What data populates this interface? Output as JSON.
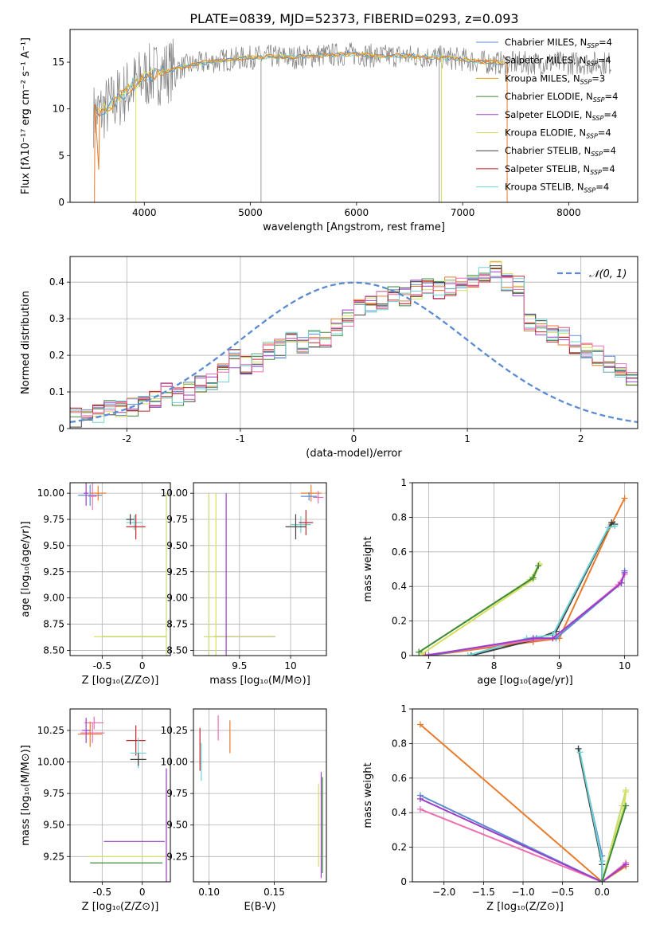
{
  "figure": {
    "title": "PLATE=0839, MJD=52373, FIBERID=0293, z=0.093"
  },
  "palette": {
    "Chabrier MILES": "#5b8bd0",
    "Salpeter MILES": "#e87b2c",
    "Kroupa MILES": "#e8a31d",
    "Chabrier ELODIE": "#3d8a3d",
    "Salpeter ELODIE": "#9b3ec9",
    "Kroupa ELODIE": "#d7e05a",
    "Chabrier STELIB": "#404040",
    "Salpeter STELIB": "#c0272d",
    "Kroupa STELIB": "#6fd3d6",
    "pink": "#ee6fb0",
    "lime": "#c4dc70",
    "data_gray": "#808080",
    "normal_curve": "#5b8bd0"
  },
  "chart_data": [
    {
      "id": "spectrum",
      "type": "line",
      "xlabel": "wavelength [Angstrom, rest frame]",
      "ylabel": "Flux [fλ10⁻¹⁷ erg cm⁻² s⁻¹ A⁻¹]",
      "xlim": [
        3300,
        8650
      ],
      "ylim": [
        0,
        18.5
      ],
      "xticks": [
        4000,
        5000,
        6000,
        7000,
        8000
      ],
      "yticks": [
        0,
        5,
        10,
        15
      ],
      "legend_position": "top-right",
      "legend": [
        {
          "label": "Chabrier MILES, N",
          "sub": "SSP",
          "tail": "=4",
          "color": "#5b8bd0"
        },
        {
          "label": "Salpeter MILES, N",
          "sub": "SSP",
          "tail": "=4",
          "color": "#e87b2c"
        },
        {
          "label": "Kroupa MILES, N",
          "sub": "SSP",
          "tail": "=3",
          "color": "#e8a31d"
        },
        {
          "label": "Chabrier ELODIE, N",
          "sub": "SSP",
          "tail": "=4",
          "color": "#3d8a3d"
        },
        {
          "label": "Salpeter ELODIE, N",
          "sub": "SSP",
          "tail": "=4",
          "color": "#9b3ec9"
        },
        {
          "label": "Kroupa ELODIE, N",
          "sub": "SSP",
          "tail": "=4",
          "color": "#d7e05a"
        },
        {
          "label": "Chabrier STELIB, N",
          "sub": "SSP",
          "tail": "=4",
          "color": "#404040"
        },
        {
          "label": "Salpeter STELIB, N",
          "sub": "SSP",
          "tail": "=4",
          "color": "#c0272d"
        },
        {
          "label": "Kroupa STELIB, N",
          "sub": "SSP",
          "tail": "=4",
          "color": "#6fd3d6"
        }
      ],
      "continuum": [
        [
          3500,
          9.2
        ],
        [
          3600,
          9.8
        ],
        [
          3700,
          10.6
        ],
        [
          3800,
          11.6
        ],
        [
          3900,
          12.6
        ],
        [
          4000,
          13.4
        ],
        [
          4200,
          14.0
        ],
        [
          4400,
          14.6
        ],
        [
          4600,
          15.0
        ],
        [
          4800,
          15.3
        ],
        [
          5000,
          15.5
        ],
        [
          5200,
          15.6
        ],
        [
          5400,
          15.5
        ],
        [
          5600,
          15.7
        ],
        [
          5800,
          15.8
        ],
        [
          6000,
          15.9
        ],
        [
          6200,
          15.6
        ],
        [
          6400,
          15.7
        ],
        [
          6600,
          15.6
        ],
        [
          6800,
          15.5
        ],
        [
          7000,
          15.3
        ],
        [
          7200,
          15.0
        ],
        [
          7400,
          14.9
        ]
      ],
      "model_edges": [
        {
          "color": "#e87b2c",
          "x": [
            3530,
            3570
          ],
          "drop_to": 0,
          "right_end": 7420
        },
        {
          "color": "#d7e05a",
          "x": [
            3920
          ],
          "drop_to": 0,
          "right_end": 6800
        }
      ],
      "data_range": [
        3520,
        8400
      ],
      "noise_amplitude_blue": 3.5,
      "noise_amplitude_red": 1.3,
      "spikes": [
        {
          "x": 5100,
          "y0": 0,
          "y1": 15.2
        },
        {
          "x": 6780,
          "y0": 0,
          "y1": 15.4
        }
      ]
    },
    {
      "id": "residuals",
      "type": "histogram",
      "xlabel": "(data-model)/error",
      "ylabel": "Normed distribution",
      "xlim": [
        -2.5,
        2.5
      ],
      "ylim": [
        0,
        0.47
      ],
      "xticks": [
        -2,
        -1,
        0,
        1,
        2
      ],
      "yticks": [
        0.0,
        0.1,
        0.2,
        0.3,
        0.4
      ],
      "grid": true,
      "legend_position": "top-right",
      "legend": [
        {
          "label": "𝒩(0, 1)",
          "color": "#5b8bd0",
          "style": "dashed"
        }
      ],
      "bin_width": 0.1,
      "bin_start": -2.5,
      "base_values": [
        0.03,
        0.03,
        0.04,
        0.05,
        0.05,
        0.06,
        0.07,
        0.08,
        0.1,
        0.09,
        0.1,
        0.12,
        0.13,
        0.15,
        0.19,
        0.17,
        0.18,
        0.21,
        0.22,
        0.24,
        0.23,
        0.25,
        0.24,
        0.28,
        0.3,
        0.33,
        0.34,
        0.35,
        0.37,
        0.36,
        0.38,
        0.39,
        0.38,
        0.39,
        0.4,
        0.41,
        0.42,
        0.43,
        0.4,
        0.39,
        0.29,
        0.28,
        0.26,
        0.25,
        0.23,
        0.21,
        0.2,
        0.18,
        0.15,
        0.14,
        0.13,
        0.11,
        0.1,
        0.09,
        0.08,
        0.07,
        0.07,
        0.06,
        0.05,
        0.05
      ],
      "normal_curve": {
        "mu": 0,
        "sigma": 1
      }
    },
    {
      "id": "age_vs_Z",
      "type": "scatter",
      "xlabel": "Z [log₁₀(Z/Z⊙)]",
      "ylabel": "age  [log₁₀(age/yr)]",
      "xlim": [
        -0.9,
        0.35
      ],
      "ylim": [
        8.45,
        10.1
      ],
      "xticks": [
        -0.5,
        0.0
      ],
      "yticks": [
        8.5,
        8.75,
        9.0,
        9.25,
        9.5,
        9.75,
        10.0
      ],
      "ytick_labels": [
        "8.50",
        "8.75",
        "9.00",
        "9.25",
        "9.50",
        "9.75",
        "10.00"
      ],
      "grid": true,
      "points": [
        {
          "x": -0.65,
          "y": 9.98,
          "xerr": 0.15,
          "yerr": 0.1,
          "color": "#5b8bd0"
        },
        {
          "x": -0.55,
          "y": 10.0,
          "xerr": 0.1,
          "yerr": 0.07,
          "color": "#e87b2c"
        },
        {
          "x": -0.62,
          "y": 9.97,
          "xerr": 0.05,
          "yerr": 0.13,
          "color": "#ee6fb0"
        },
        {
          "x": -0.7,
          "y": 10.0,
          "xerr": 0.03,
          "yerr": 0.12,
          "color": "#9b3ec9"
        },
        {
          "x": -0.1,
          "y": 9.72,
          "xerr": 0.1,
          "yerr": 0.07,
          "color": "#6fd3d6"
        },
        {
          "x": -0.08,
          "y": 9.68,
          "xerr": 0.12,
          "yerr": 0.12,
          "color": "#c0272d"
        },
        {
          "x": -0.15,
          "y": 9.75,
          "xerr": 0.05,
          "yerr": 0.05,
          "color": "#404040"
        },
        {
          "x": -0.1,
          "y": 8.63,
          "xerr": 0.4,
          "yerr": 0.0,
          "color": "#3d8a3d"
        },
        {
          "x": -0.15,
          "y": 8.63,
          "xerr": 0.45,
          "yerr": 0.0,
          "color": "#d7e05a"
        },
        {
          "x": 0.3,
          "y": 9.2,
          "xerr": 0.0,
          "yerr": 0.8,
          "color": "#c4dc70"
        }
      ]
    },
    {
      "id": "age_vs_mass",
      "type": "scatter",
      "xlabel": "mass [log₁₀(M/M⊙)]",
      "ylabel": "",
      "xlim": [
        9.05,
        10.35
      ],
      "ylim": [
        8.45,
        10.1
      ],
      "xticks": [
        9.5,
        10.0
      ],
      "yticks": [
        8.5,
        8.75,
        9.0,
        9.25,
        9.5,
        9.75,
        10.0
      ],
      "ytick_labels": [
        "8.50",
        "8.75",
        "9.00",
        "9.25",
        "9.50",
        "9.75",
        "10.00"
      ],
      "grid": true,
      "points": [
        {
          "x": 10.2,
          "y": 10.0,
          "xerr": 0.1,
          "yerr": 0.08,
          "color": "#e87b2c"
        },
        {
          "x": 10.27,
          "y": 9.96,
          "xerr": 0.05,
          "yerr": 0.06,
          "color": "#ee6fb0"
        },
        {
          "x": 10.18,
          "y": 9.97,
          "xerr": 0.08,
          "yerr": 0.04,
          "color": "#5b8bd0"
        },
        {
          "x": 10.1,
          "y": 9.7,
          "xerr": 0.1,
          "yerr": 0.08,
          "color": "#6fd3d6"
        },
        {
          "x": 10.05,
          "y": 9.68,
          "xerr": 0.1,
          "yerr": 0.12,
          "color": "#404040"
        },
        {
          "x": 10.15,
          "y": 9.72,
          "xerr": 0.07,
          "yerr": 0.12,
          "color": "#c0272d"
        },
        {
          "x": 9.55,
          "y": 8.63,
          "xerr": 0.3,
          "yerr": 0.0,
          "color": "#9b3ec9"
        },
        {
          "x": 9.5,
          "y": 8.63,
          "xerr": 0.35,
          "yerr": 0.0,
          "color": "#c4dc70"
        },
        {
          "x": 9.37,
          "y": 9.2,
          "xerr": 0.0,
          "yerr": 0.8,
          "color": "#9b3ec9"
        },
        {
          "x": 9.27,
          "y": 9.2,
          "xerr": 0.0,
          "yerr": 0.8,
          "color": "#d7e05a"
        },
        {
          "x": 9.2,
          "y": 9.2,
          "xerr": 0.0,
          "yerr": 0.8,
          "color": "#c4dc70"
        }
      ]
    },
    {
      "id": "mass_weight_vs_age",
      "type": "line",
      "xlabel": "age  [log₁₀(age/yr)]",
      "ylabel": "mass weight",
      "xlim": [
        6.75,
        10.2
      ],
      "ylim": [
        0,
        1.0
      ],
      "xticks": [
        7,
        8,
        9,
        10
      ],
      "yticks": [
        0.0,
        0.2,
        0.4,
        0.6,
        0.8,
        1.0
      ],
      "grid": true,
      "series": [
        {
          "color": "#e87b2c",
          "x": [
            7.0,
            8.6,
            9.0,
            9.8,
            10.0
          ],
          "y": [
            0.0,
            0.08,
            0.1,
            0.76,
            0.91
          ]
        },
        {
          "color": "#404040",
          "x": [
            7.65,
            8.6,
            8.95,
            9.8,
            9.85
          ],
          "y": [
            0.0,
            0.09,
            0.14,
            0.77,
            0.76
          ]
        },
        {
          "color": "#6fd3d6",
          "x": [
            7.6,
            8.5,
            8.9,
            9.75,
            9.85
          ],
          "y": [
            0.0,
            0.1,
            0.12,
            0.74,
            0.75
          ]
        },
        {
          "color": "#5b8bd0",
          "x": [
            7.0,
            8.65,
            8.95,
            9.95,
            10.0
          ],
          "y": [
            0.0,
            0.1,
            0.1,
            0.42,
            0.49
          ]
        },
        {
          "color": "#ee6fb0",
          "x": [
            6.9,
            8.6,
            8.9,
            9.9,
            10.0
          ],
          "y": [
            0.0,
            0.09,
            0.1,
            0.41,
            0.47
          ]
        },
        {
          "color": "#9b3ec9",
          "x": [
            6.95,
            8.6,
            8.9,
            9.95,
            10.0
          ],
          "y": [
            0.0,
            0.1,
            0.1,
            0.42,
            0.48
          ]
        },
        {
          "color": "#c4dc70",
          "x": [
            6.85,
            8.55,
            8.7
          ],
          "y": [
            0.02,
            0.44,
            0.53
          ]
        },
        {
          "color": "#d7e05a",
          "x": [
            6.9,
            8.6,
            8.7
          ],
          "y": [
            0.01,
            0.44,
            0.53
          ]
        },
        {
          "color": "#3d8a3d",
          "x": [
            6.85,
            8.6,
            8.68
          ],
          "y": [
            0.02,
            0.45,
            0.52
          ]
        }
      ]
    },
    {
      "id": "mass_vs_Z",
      "type": "scatter",
      "xlabel": "Z [log₁₀(Z/Z⊙)]",
      "ylabel": "mass [log₁₀(M/M⊙)]",
      "xlim": [
        -0.9,
        0.35
      ],
      "ylim": [
        9.05,
        10.42
      ],
      "xticks": [
        -0.5,
        0.0
      ],
      "yticks": [
        9.25,
        9.5,
        9.75,
        10.0,
        10.25
      ],
      "ytick_labels": [
        "9.25",
        "9.50",
        "9.75",
        "10.00",
        "10.25"
      ],
      "grid": true,
      "points": [
        {
          "x": -0.62,
          "y": 10.23,
          "xerr": 0.15,
          "yerr": 0.08,
          "color": "#ee6fb0"
        },
        {
          "x": -0.6,
          "y": 10.31,
          "xerr": 0.12,
          "yerr": 0.05,
          "color": "#ee6fb0"
        },
        {
          "x": -0.65,
          "y": 10.22,
          "xerr": 0.15,
          "yerr": 0.1,
          "color": "#e87b2c"
        },
        {
          "x": -0.7,
          "y": 10.25,
          "xerr": 0.05,
          "yerr": 0.1,
          "color": "#9b3ec9"
        },
        {
          "x": -0.08,
          "y": 10.17,
          "xerr": 0.12,
          "yerr": 0.12,
          "color": "#c0272d"
        },
        {
          "x": -0.05,
          "y": 10.07,
          "xerr": 0.1,
          "yerr": 0.12,
          "color": "#6fd3d6"
        },
        {
          "x": -0.05,
          "y": 10.02,
          "xerr": 0.1,
          "yerr": 0.05,
          "color": "#404040"
        },
        {
          "x": -0.1,
          "y": 9.37,
          "xerr": 0.38,
          "yerr": 0.0,
          "color": "#9b3ec9"
        },
        {
          "x": -0.2,
          "y": 9.25,
          "xerr": 0.48,
          "yerr": 0.0,
          "color": "#d7e05a"
        },
        {
          "x": -0.2,
          "y": 9.2,
          "xerr": 0.45,
          "yerr": 0.0,
          "color": "#3d8a3d"
        },
        {
          "x": 0.3,
          "y": 9.5,
          "xerr": 0.0,
          "yerr": 0.4,
          "color": "#c4dc70"
        },
        {
          "x": 0.3,
          "y": 9.5,
          "xerr": 0.0,
          "yerr": 0.45,
          "color": "#9b3ec9"
        }
      ]
    },
    {
      "id": "mass_vs_ebv",
      "type": "scatter",
      "xlabel": "E(B-V)",
      "ylabel": "",
      "xlim": [
        0.088,
        0.19
      ],
      "ylim": [
        9.05,
        10.42
      ],
      "xticks": [
        0.1,
        0.15
      ],
      "xtick_labels": [
        "0.10",
        "0.15"
      ],
      "yticks": [
        9.25,
        9.5,
        9.75,
        10.0,
        10.25
      ],
      "ytick_labels": [
        "9.25",
        "9.50",
        "9.75",
        "10.00",
        "10.25"
      ],
      "grid": true,
      "points": [
        {
          "x": 0.093,
          "y": 10.1,
          "xerr": 0.0,
          "yerr": 0.17,
          "color": "#c0272d"
        },
        {
          "x": 0.094,
          "y": 10.0,
          "xerr": 0.0,
          "yerr": 0.15,
          "color": "#6fd3d6"
        },
        {
          "x": 0.107,
          "y": 10.27,
          "xerr": 0.0,
          "yerr": 0.1,
          "color": "#ee6fb0"
        },
        {
          "x": 0.116,
          "y": 10.2,
          "xerr": 0.0,
          "yerr": 0.13,
          "color": "#e87b2c"
        },
        {
          "x": 0.184,
          "y": 9.5,
          "xerr": 0.0,
          "yerr": 0.33,
          "color": "#d7e05a"
        },
        {
          "x": 0.186,
          "y": 9.5,
          "xerr": 0.0,
          "yerr": 0.42,
          "color": "#9b3ec9"
        },
        {
          "x": 0.187,
          "y": 9.5,
          "xerr": 0.0,
          "yerr": 0.38,
          "color": "#3d8a3d"
        }
      ]
    },
    {
      "id": "mass_weight_vs_Z",
      "type": "line",
      "xlabel": "Z [log₁₀(Z/Z⊙)]",
      "ylabel": "mass weight",
      "xlim": [
        -2.4,
        0.45
      ],
      "ylim": [
        0,
        1.0
      ],
      "xticks": [
        -2.0,
        -1.5,
        -1.0,
        -0.5,
        0.0
      ],
      "xtick_labels": [
        "−2.0",
        "−1.5",
        "−1.0",
        "−0.5",
        "0.0"
      ],
      "yticks": [
        0.0,
        0.2,
        0.4,
        0.6,
        0.8,
        1.0
      ],
      "grid": true,
      "series": [
        {
          "color": "#e87b2c",
          "x": [
            -2.3,
            0.0,
            0.3
          ],
          "y": [
            0.91,
            0.0,
            0.09
          ]
        },
        {
          "color": "#5b8bd0",
          "x": [
            -2.3,
            0.0,
            0.0,
            -0.3
          ],
          "y": [
            0.5,
            0.0,
            0.15,
            0.77
          ]
        },
        {
          "color": "#ee6fb0",
          "x": [
            -2.3,
            0.0,
            0.3
          ],
          "y": [
            0.42,
            0.0,
            0.11
          ]
        },
        {
          "color": "#9b3ec9",
          "x": [
            -2.3,
            0.0,
            0.3
          ],
          "y": [
            0.48,
            0.0,
            0.1
          ]
        },
        {
          "color": "#404040",
          "x": [
            -0.3,
            0.0,
            0.0
          ],
          "y": [
            0.77,
            0.1,
            0.0
          ]
        },
        {
          "color": "#6fd3d6",
          "x": [
            -0.28,
            0.0,
            0.0
          ],
          "y": [
            0.75,
            0.12,
            0.0
          ]
        },
        {
          "color": "#c4dc70",
          "x": [
            0.0,
            0.25,
            0.3
          ],
          "y": [
            0.0,
            0.44,
            0.53
          ]
        },
        {
          "color": "#d7e05a",
          "x": [
            0.0,
            0.28,
            0.3
          ],
          "y": [
            0.0,
            0.44,
            0.52
          ]
        },
        {
          "color": "#3d8a3d",
          "x": [
            0.0,
            0.3
          ],
          "y": [
            0.0,
            0.44
          ]
        }
      ]
    }
  ]
}
